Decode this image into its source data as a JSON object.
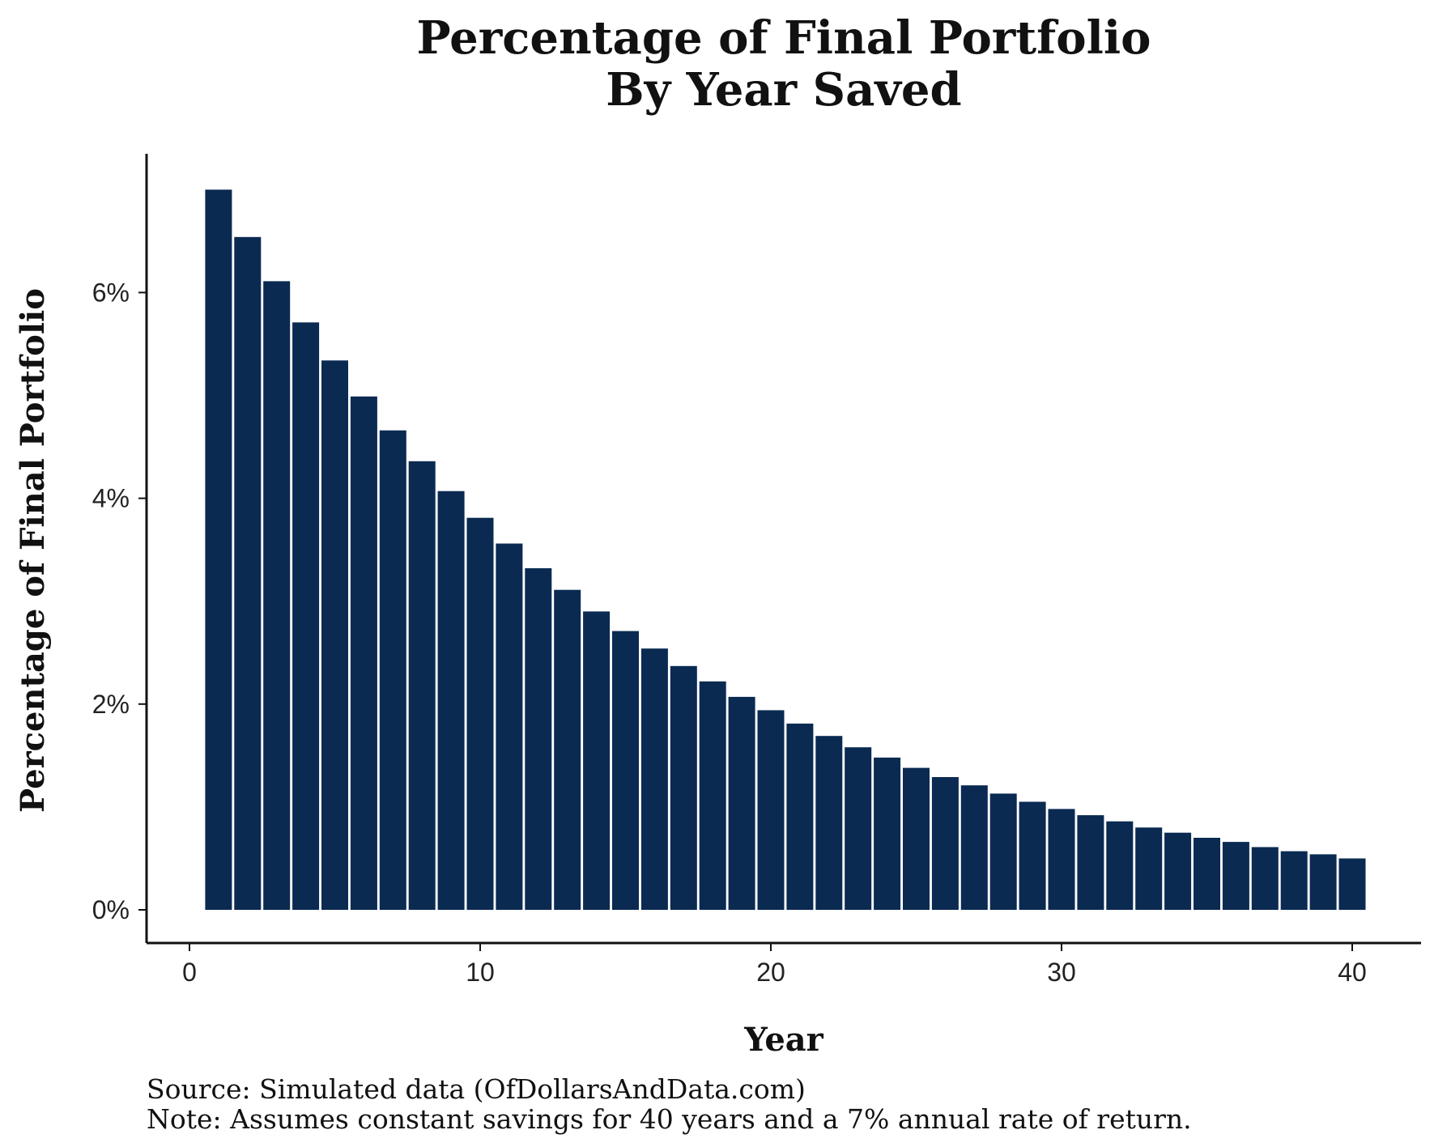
{
  "chart_data": {
    "type": "bar",
    "title": "Percentage of Final Portfolio",
    "subtitle": "By Year Saved",
    "xlabel": "Year",
    "ylabel": "Percentage of Final Portfolio",
    "xlim": [
      0,
      42
    ],
    "ylim": [
      0,
      7.15
    ],
    "x_ticks": [
      0,
      10,
      20,
      30,
      40
    ],
    "x_tick_labels": [
      "0",
      "10",
      "20",
      "30",
      "40"
    ],
    "y_ticks": [
      0,
      2,
      4,
      6
    ],
    "y_tick_labels": [
      "0%",
      "2%",
      "4%",
      "6%"
    ],
    "grid": false,
    "legend": "none",
    "bar_color": "#0a2a52",
    "x": [
      1,
      2,
      3,
      4,
      5,
      6,
      7,
      8,
      9,
      10,
      11,
      12,
      13,
      14,
      15,
      16,
      17,
      18,
      19,
      20,
      21,
      22,
      23,
      24,
      25,
      26,
      27,
      28,
      29,
      30,
      31,
      32,
      33,
      34,
      35,
      36,
      37,
      38,
      39,
      40
    ],
    "values": [
      7.0,
      6.54,
      6.11,
      5.71,
      5.34,
      4.99,
      4.66,
      4.36,
      4.07,
      3.81,
      3.56,
      3.32,
      3.11,
      2.9,
      2.71,
      2.54,
      2.37,
      2.22,
      2.07,
      1.94,
      1.81,
      1.69,
      1.58,
      1.48,
      1.38,
      1.29,
      1.21,
      1.13,
      1.05,
      0.98,
      0.92,
      0.86,
      0.8,
      0.75,
      0.7,
      0.66,
      0.61,
      0.57,
      0.54,
      0.5
    ]
  },
  "footer": {
    "source": "Source: Simulated data (OfDollarsAndData.com)",
    "note": "Note: Assumes constant savings for 40 years and a 7% annual rate of return."
  }
}
